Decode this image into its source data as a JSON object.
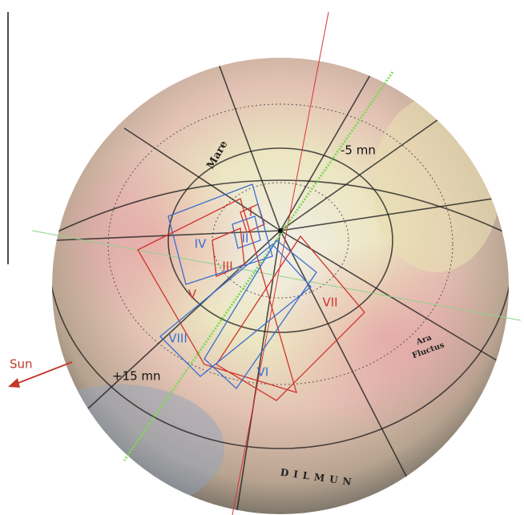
{
  "labels": {
    "sun": "Sun",
    "time_start": "-5 mn",
    "time_end": "+15 mn"
  },
  "map_labels": [
    "Mare",
    "DILMUN",
    "Ara",
    "Fluctus"
  ],
  "footprints": [
    {
      "label": "I",
      "color": "#d0342c"
    },
    {
      "label": "II",
      "color": "#3a6fd0"
    },
    {
      "label": "III",
      "color": "#d0342c"
    },
    {
      "label": "IV",
      "color": "#3a6fd0"
    },
    {
      "label": "V",
      "color": "#d0342c"
    },
    {
      "label": "VI",
      "color": "#3a6fd0"
    },
    {
      "label": "VII",
      "color": "#d0342c"
    },
    {
      "label": "VIII",
      "color": "#3a6fd0"
    }
  ]
}
